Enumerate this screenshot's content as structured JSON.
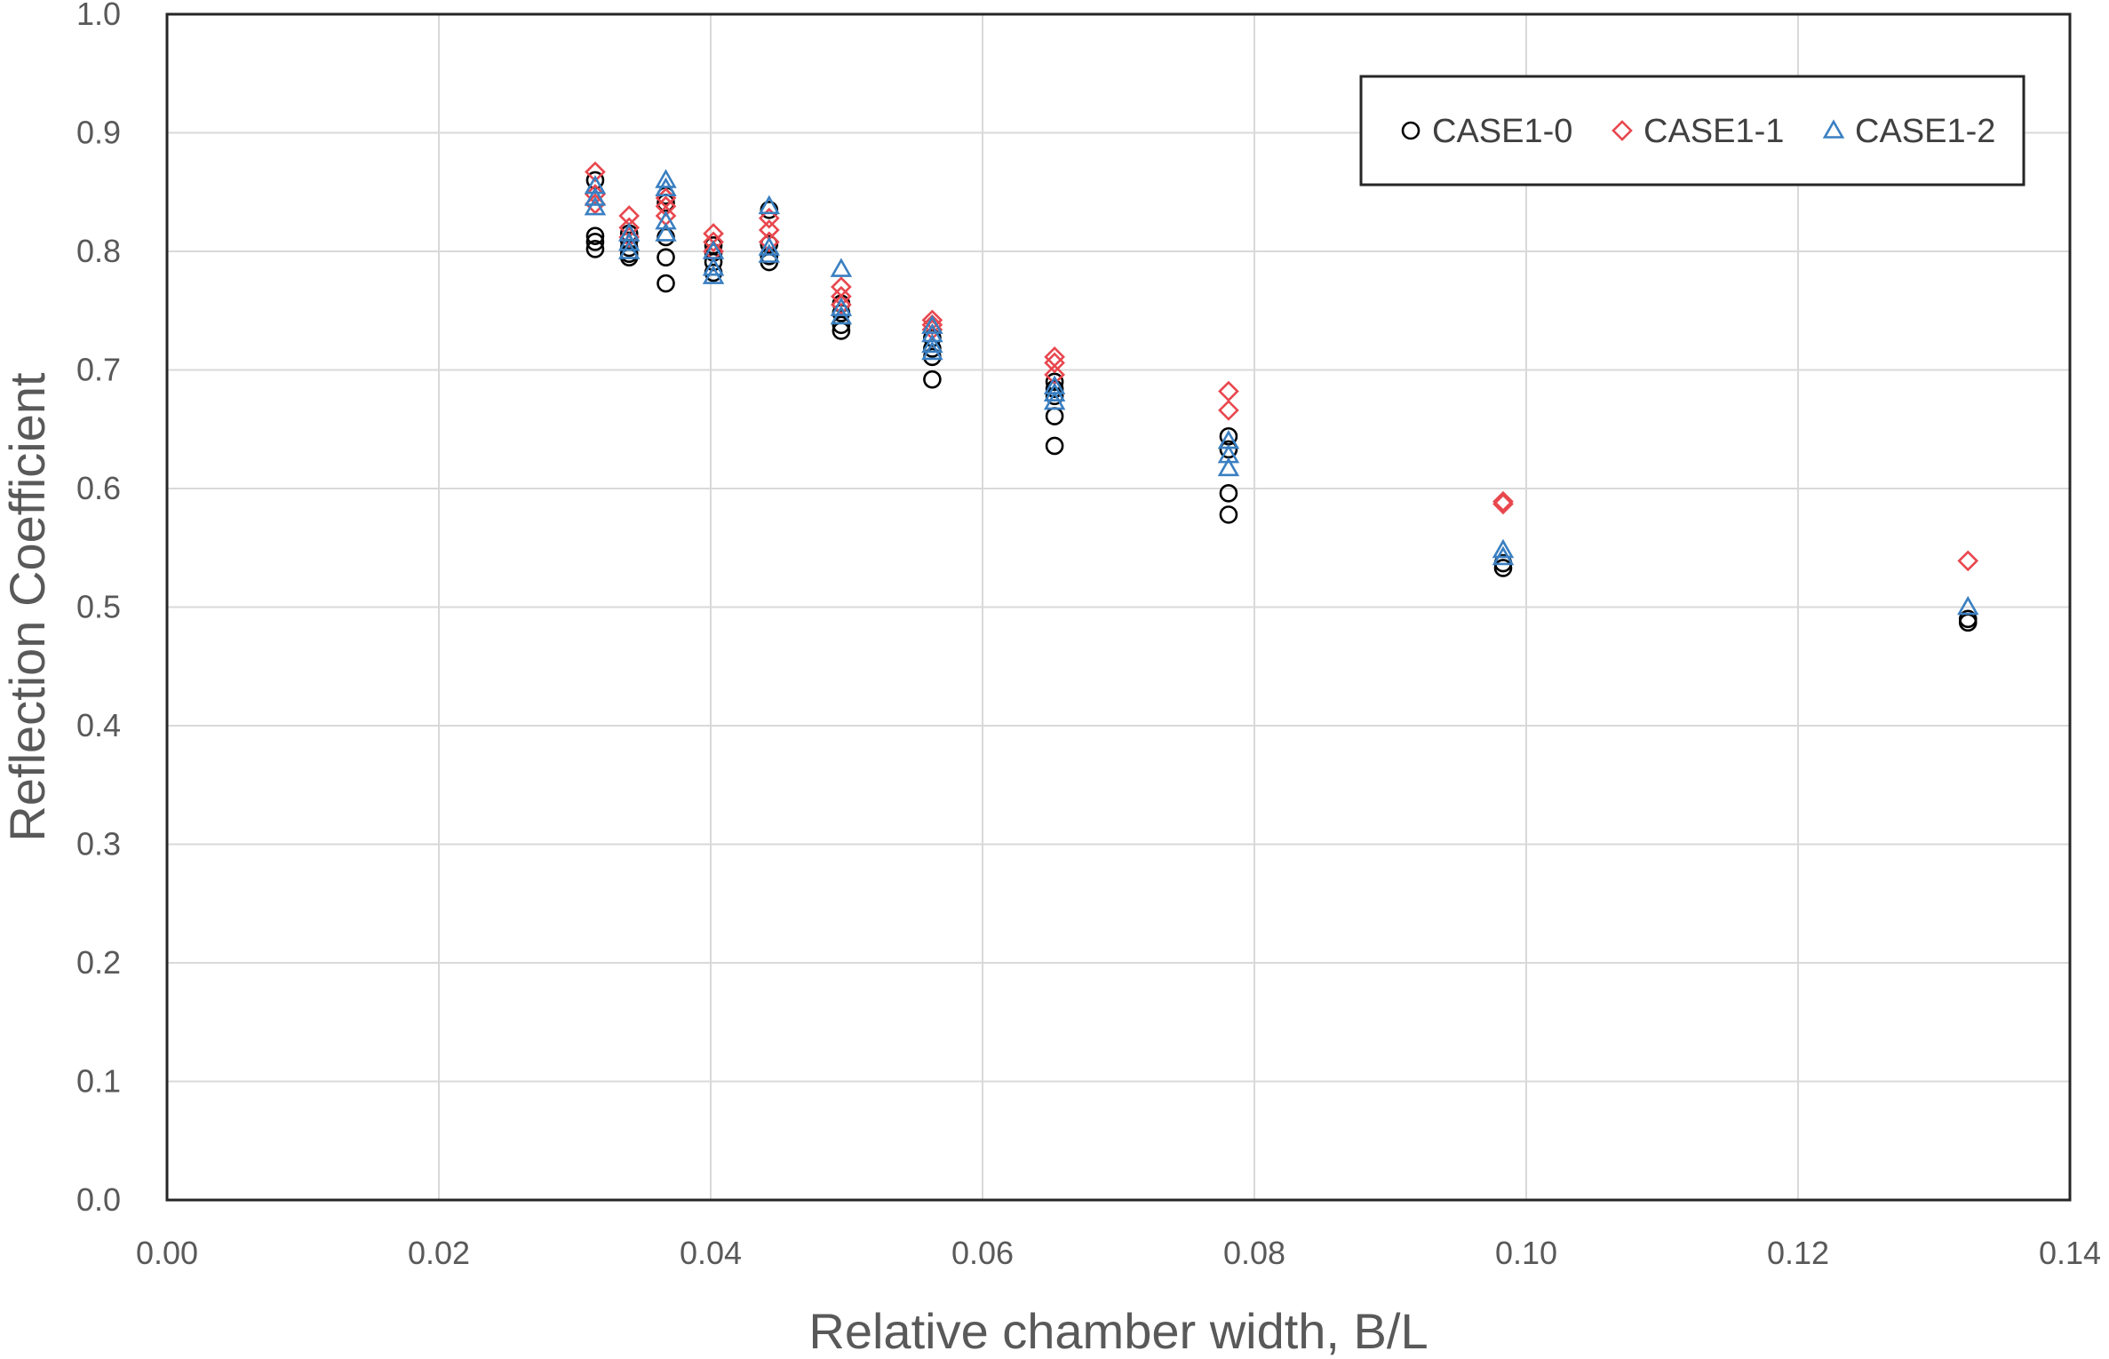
{
  "chart_data": {
    "type": "scatter",
    "title": "",
    "xlabel": "Relative chamber width, B/L",
    "ylabel": "Reflection Coefficient",
    "xlim": [
      0.0,
      0.14
    ],
    "ylim": [
      0.0,
      1.0
    ],
    "xticks": [
      "0.00",
      "0.02",
      "0.04",
      "0.06",
      "0.08",
      "0.10",
      "0.12",
      "0.14"
    ],
    "yticks": [
      "0.0",
      "0.1",
      "0.2",
      "0.3",
      "0.4",
      "0.5",
      "0.6",
      "0.7",
      "0.8",
      "0.9",
      "1.0"
    ],
    "grid": true,
    "legend_position": "top-right",
    "series": [
      {
        "name": "CASE1-0",
        "marker": "circle",
        "color": "#000000",
        "points": [
          [
            0.0315,
            0.86
          ],
          [
            0.0315,
            0.813
          ],
          [
            0.0315,
            0.808
          ],
          [
            0.0315,
            0.802
          ],
          [
            0.034,
            0.815
          ],
          [
            0.034,
            0.809
          ],
          [
            0.034,
            0.803
          ],
          [
            0.034,
            0.798
          ],
          [
            0.034,
            0.795
          ],
          [
            0.0367,
            0.847
          ],
          [
            0.0367,
            0.841
          ],
          [
            0.0367,
            0.812
          ],
          [
            0.0367,
            0.795
          ],
          [
            0.0367,
            0.773
          ],
          [
            0.0402,
            0.805
          ],
          [
            0.0402,
            0.799
          ],
          [
            0.0402,
            0.791
          ],
          [
            0.0402,
            0.782
          ],
          [
            0.0443,
            0.835
          ],
          [
            0.0443,
            0.806
          ],
          [
            0.0443,
            0.796
          ],
          [
            0.0443,
            0.791
          ],
          [
            0.0496,
            0.756
          ],
          [
            0.0496,
            0.748
          ],
          [
            0.0496,
            0.738
          ],
          [
            0.0496,
            0.733
          ],
          [
            0.0563,
            0.727
          ],
          [
            0.0563,
            0.718
          ],
          [
            0.0563,
            0.711
          ],
          [
            0.0563,
            0.692
          ],
          [
            0.0653,
            0.69
          ],
          [
            0.0653,
            0.684
          ],
          [
            0.0653,
            0.678
          ],
          [
            0.0653,
            0.661
          ],
          [
            0.0653,
            0.636
          ],
          [
            0.0781,
            0.644
          ],
          [
            0.0781,
            0.633
          ],
          [
            0.0781,
            0.596
          ],
          [
            0.0781,
            0.578
          ],
          [
            0.0983,
            0.537
          ],
          [
            0.0983,
            0.533
          ],
          [
            0.1325,
            0.49
          ],
          [
            0.1325,
            0.487
          ]
        ]
      },
      {
        "name": "CASE1-1",
        "marker": "diamond",
        "color": "#e8474e",
        "points": [
          [
            0.0315,
            0.867
          ],
          [
            0.0315,
            0.848
          ],
          [
            0.0315,
            0.84
          ],
          [
            0.034,
            0.83
          ],
          [
            0.034,
            0.82
          ],
          [
            0.034,
            0.812
          ],
          [
            0.0367,
            0.845
          ],
          [
            0.0367,
            0.838
          ],
          [
            0.0367,
            0.83
          ],
          [
            0.0402,
            0.815
          ],
          [
            0.0402,
            0.808
          ],
          [
            0.0402,
            0.8
          ],
          [
            0.0443,
            0.828
          ],
          [
            0.0443,
            0.818
          ],
          [
            0.0443,
            0.808
          ],
          [
            0.0496,
            0.77
          ],
          [
            0.0496,
            0.762
          ],
          [
            0.0496,
            0.755
          ],
          [
            0.0563,
            0.742
          ],
          [
            0.0563,
            0.738
          ],
          [
            0.0563,
            0.734
          ],
          [
            0.0653,
            0.711
          ],
          [
            0.0653,
            0.706
          ],
          [
            0.0653,
            0.696
          ],
          [
            0.0781,
            0.682
          ],
          [
            0.0781,
            0.666
          ],
          [
            0.0983,
            0.589
          ],
          [
            0.0983,
            0.587
          ],
          [
            0.1325,
            0.539
          ]
        ]
      },
      {
        "name": "CASE1-2",
        "marker": "triangle",
        "color": "#3a7fc1",
        "points": [
          [
            0.0315,
            0.855
          ],
          [
            0.0315,
            0.845
          ],
          [
            0.0315,
            0.837
          ],
          [
            0.034,
            0.815
          ],
          [
            0.034,
            0.807
          ],
          [
            0.034,
            0.8
          ],
          [
            0.0367,
            0.86
          ],
          [
            0.0367,
            0.853
          ],
          [
            0.0367,
            0.825
          ],
          [
            0.0367,
            0.815
          ],
          [
            0.0402,
            0.8
          ],
          [
            0.0402,
            0.786
          ],
          [
            0.0402,
            0.779
          ],
          [
            0.0443,
            0.838
          ],
          [
            0.0443,
            0.803
          ],
          [
            0.0443,
            0.797
          ],
          [
            0.0496,
            0.785
          ],
          [
            0.0496,
            0.752
          ],
          [
            0.0496,
            0.745
          ],
          [
            0.0563,
            0.737
          ],
          [
            0.0563,
            0.73
          ],
          [
            0.0563,
            0.721
          ],
          [
            0.0563,
            0.715
          ],
          [
            0.0653,
            0.686
          ],
          [
            0.0653,
            0.68
          ],
          [
            0.0653,
            0.673
          ],
          [
            0.0781,
            0.64
          ],
          [
            0.0781,
            0.628
          ],
          [
            0.0781,
            0.617
          ],
          [
            0.0983,
            0.548
          ],
          [
            0.0983,
            0.542
          ],
          [
            0.1325,
            0.5
          ]
        ]
      }
    ]
  }
}
